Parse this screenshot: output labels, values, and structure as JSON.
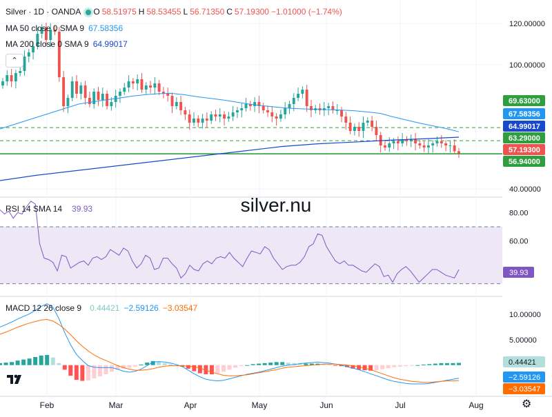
{
  "header": {
    "symbol": "Silver · 1D · OANDA",
    "open_label": "O",
    "open": "58.51975",
    "high_label": "H",
    "high": "58.53455",
    "low_label": "L",
    "low": "56.71350",
    "close_label": "C",
    "close": "57.19300",
    "change": "−1.01000 (−1.74%)"
  },
  "indicators": {
    "ma50": {
      "label": "MA 50 close 0 SMA 9",
      "value": "67.58356",
      "color": "#2196f3"
    },
    "ma200": {
      "label": "MA 200 close 0 SMA 9",
      "value": "64.99017",
      "color": "#1848cc"
    },
    "rsi": {
      "label": "RSI 14 SMA 14",
      "value": "39.93",
      "color": "#7e57c2"
    },
    "macd": {
      "label": "MACD 12 26 close 9",
      "hist_value": "0.44421",
      "macd_value": "−2.59126",
      "signal_value": "−3.03547"
    }
  },
  "watermark": "silver.nu",
  "collapse_icon": "chevron-up-icon",
  "colors": {
    "up": "#26a69a",
    "down": "#ef5350",
    "rsi_band": "#ede7f6",
    "hline_green": "#2e9e3e"
  },
  "chart_data": [
    {
      "type": "candlestick",
      "title": "Silver · 1D · OANDA",
      "x_labels": [
        "Feb",
        "Mar",
        "Apr",
        "May",
        "Jun",
        "Jul",
        "Aug"
      ],
      "y_ticks": [
        "120.00000",
        "100.00000",
        "40.00000"
      ],
      "ylim": [
        38,
        124
      ],
      "closes": [
        92,
        95,
        92,
        96,
        97,
        104,
        106,
        109,
        115,
        118,
        112,
        117,
        116,
        94,
        80,
        84,
        92,
        86,
        90,
        84,
        81,
        87,
        83,
        86,
        80,
        82,
        85,
        87,
        89,
        92,
        91,
        93,
        88,
        90,
        89,
        91,
        87,
        86,
        85,
        80,
        82,
        78,
        76,
        72,
        74,
        72,
        74,
        73,
        76,
        75,
        76,
        74,
        75,
        77,
        78,
        79,
        81,
        80,
        82,
        80,
        78,
        77,
        75,
        74,
        76,
        79,
        81,
        84,
        86,
        88,
        80,
        78,
        79,
        78,
        79,
        80,
        78,
        78,
        75,
        72,
        68,
        70,
        68,
        72,
        73,
        70,
        66,
        61,
        60,
        62,
        63,
        62,
        64,
        63,
        64,
        62,
        61,
        60,
        61,
        62,
        63,
        62,
        61,
        61,
        58.2,
        57.19
      ],
      "ma50": [
        69,
        71,
        73,
        75,
        77,
        79,
        81,
        82,
        83,
        83.8,
        84.8,
        85.5,
        86,
        86.2,
        85.6,
        84.6,
        83.8,
        83,
        82,
        81,
        80.2,
        79.6,
        79,
        78.7,
        78.5,
        78.3,
        78.1,
        77.8,
        77.2,
        76.5,
        74.8,
        73.3,
        71.8,
        70.5,
        69.2,
        67.58356
      ],
      "ma200": [
        44,
        46.5,
        48.5,
        50.5,
        52.5,
        54.5,
        56.5,
        58.5,
        60.5,
        61.8,
        62.6,
        63.5,
        64.2,
        64.99017
      ],
      "hlines": [
        {
          "label": "69.63000",
          "value": 69.63,
          "color": "#2e9e3e",
          "style": "dashed"
        },
        {
          "label": "63.29000",
          "value": 63.29,
          "color": "#2e9e3e",
          "style": "dashed"
        },
        {
          "label": "56.94000",
          "value": 56.94,
          "color": "#2e9e3e",
          "style": "solid"
        }
      ],
      "price_tags": [
        {
          "label": "69.63000",
          "color": "#2e9e3e"
        },
        {
          "label": "67.58356",
          "color": "#2196f3"
        },
        {
          "label": "64.99017",
          "color": "#1848cc"
        },
        {
          "label": "63.29000",
          "color": "#2e9e3e"
        },
        {
          "label": "57.19300",
          "color": "#ef5350"
        },
        {
          "label": "56.94000",
          "color": "#2e9e3e"
        }
      ]
    },
    {
      "type": "line",
      "title": "RSI 14 SMA 14",
      "y_ticks": [
        "80.00",
        "60.00"
      ],
      "ylim": [
        24,
        86
      ],
      "bands": [
        70,
        30
      ],
      "values": [
        82,
        79,
        81,
        76,
        80,
        79,
        84,
        88,
        86,
        58,
        48,
        47,
        45,
        39,
        50,
        49,
        41,
        43,
        45,
        46,
        43,
        48,
        49,
        47,
        49,
        54,
        52,
        50,
        55,
        53,
        46,
        41,
        44,
        50,
        48,
        40,
        41,
        48,
        48,
        44,
        41,
        34,
        37,
        43,
        40,
        39,
        44,
        46,
        44,
        48,
        49,
        48,
        52,
        48,
        45,
        42,
        48,
        53,
        52,
        51,
        56,
        54,
        48,
        44,
        40,
        42,
        43,
        43,
        45,
        49,
        56,
        58,
        65,
        64,
        56,
        51,
        46,
        44,
        46,
        43,
        43,
        41,
        39,
        38,
        41,
        44,
        42,
        35,
        36,
        31,
        37,
        40,
        42,
        39,
        35,
        31,
        34,
        37,
        40,
        40,
        38,
        36,
        35,
        34,
        39.93
      ],
      "value_tag": "39.93"
    },
    {
      "type": "macd",
      "title": "MACD 12 26 close 9",
      "y_ticks": [
        "10.00000",
        "5.00000"
      ],
      "ylim": [
        -5.2,
        12.2
      ],
      "macd": [
        7.5,
        8.0,
        8.5,
        9.1,
        9.6,
        10.1,
        10.8,
        11.6,
        12.1,
        11.4,
        9.2,
        6.4,
        4.0,
        2.1,
        0.9,
        -0.1,
        -0.4,
        -0.5,
        -0.5,
        -0.5,
        -0.8,
        -1.2,
        -1.4,
        -1.2,
        -0.8,
        -0.1,
        0.6,
        0.7,
        0.6,
        0.4,
        0.1,
        -0.3,
        -1.0,
        -1.7,
        -2.3,
        -2.8,
        -3.0,
        -3.1,
        -3.0,
        -2.7,
        -2.4,
        -2.1,
        -1.8,
        -1.6,
        -1.4,
        -1.1,
        -0.8,
        -0.5,
        -0.2,
        0.0,
        0.1,
        0.3,
        0.4,
        0.5,
        0.6,
        0.5,
        0.4,
        0.2,
        0.0,
        -0.3,
        -0.6,
        -0.9,
        -1.3,
        -1.7,
        -2.1,
        -2.5,
        -2.9,
        -3.2,
        -3.4,
        -3.6,
        -3.7,
        -3.7,
        -3.7,
        -3.6,
        -3.4,
        -3.2,
        -3.0,
        -2.8,
        -2.59126
      ],
      "signal": [
        6.1,
        6.5,
        7.0,
        7.5,
        7.9,
        8.3,
        8.6,
        8.9,
        9.0,
        8.7,
        8.0,
        7.1,
        6.0,
        4.8,
        3.7,
        2.8,
        2.0,
        1.4,
        0.9,
        0.4,
        -0.1,
        -0.5,
        -0.8,
        -1.0,
        -1.0,
        -0.9,
        -0.7,
        -0.4,
        -0.2,
        -0.1,
        -0.1,
        -0.1,
        -0.2,
        -0.3,
        -0.6,
        -1.0,
        -1.4,
        -1.7,
        -2.0,
        -2.1,
        -2.1,
        -2.0,
        -1.9,
        -1.7,
        -1.5,
        -1.3,
        -1.1,
        -0.9,
        -0.6,
        -0.4,
        -0.3,
        -0.2,
        -0.1,
        0.0,
        0.1,
        0.2,
        0.2,
        0.2,
        0.1,
        0.0,
        -0.1,
        -0.3,
        -0.6,
        -0.9,
        -1.3,
        -1.7,
        -2.1,
        -2.5,
        -2.8,
        -3.0,
        -3.2,
        -3.3,
        -3.4,
        -3.4,
        -3.3,
        -3.2,
        -3.1,
        -3.1,
        -3.03547
      ],
      "histogram": [
        0.4,
        0.5,
        0.6,
        0.9,
        1.1,
        1.3,
        1.6,
        1.9,
        2.0,
        1.5,
        0.4,
        -0.9,
        -2.1,
        -2.9,
        -3.1,
        -3.0,
        -2.6,
        -2.2,
        -1.8,
        -1.3,
        -0.9,
        -0.7,
        -0.5,
        -0.3,
        0.1,
        0.5,
        0.8,
        0.7,
        0.4,
        0.2,
        0.0,
        -0.3,
        -0.7,
        -1.2,
        -1.6,
        -1.8,
        -1.8,
        -1.6,
        -1.3,
        -0.9,
        -0.5,
        -0.2,
        0.0,
        0.2,
        0.3,
        0.4,
        0.5,
        0.6,
        0.6,
        0.5,
        0.4,
        0.3,
        0.3,
        0.3,
        0.3,
        0.2,
        0.1,
        -0.1,
        -0.2,
        -0.4,
        -0.7,
        -0.9,
        -1.0,
        -1.1,
        -1.0,
        -0.8,
        -0.6,
        -0.4,
        -0.3,
        -0.2,
        -0.1,
        0.0,
        0.1,
        0.2,
        0.3,
        0.4,
        0.4,
        0.4,
        0.44421
      ],
      "value_tags": [
        {
          "label": "0.44421",
          "bg": "#b2dfdb",
          "fg": "#131722"
        },
        {
          "label": "−2.59126",
          "bg": "#2196f3",
          "fg": "#ffffff"
        },
        {
          "label": "−3.03547",
          "bg": "#ff6d00",
          "fg": "#ffffff"
        }
      ]
    }
  ]
}
